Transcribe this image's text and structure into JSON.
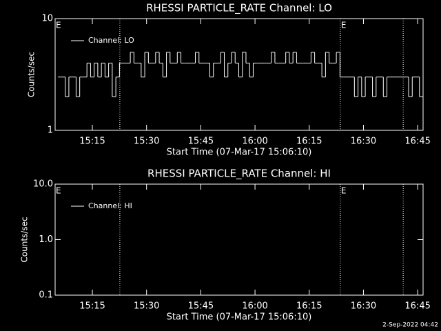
{
  "chart_data": [
    {
      "type": "step",
      "title": "RHESSI PARTICLE_RATE Channel: LO",
      "xlabel": "Start Time (07-Mar-17 15:06:10)",
      "ylabel": "Counts/sec",
      "log_y": true,
      "legend": "top-left",
      "xlim": [
        4.7,
        106.5
      ],
      "xticks": [
        {
          "value": 15,
          "label": "15:15"
        },
        {
          "value": 30,
          "label": "15:30"
        },
        {
          "value": 45,
          "label": "15:45"
        },
        {
          "value": 60,
          "label": "16:00"
        },
        {
          "value": 75,
          "label": "16:15"
        },
        {
          "value": 90,
          "label": "16:30"
        },
        {
          "value": 105,
          "label": "16:45"
        }
      ],
      "ylim": [
        1,
        10
      ],
      "yticks": [
        1,
        10
      ],
      "vlines": [
        22.6,
        83.6,
        101.0
      ],
      "flags": [
        {
          "label": "E",
          "x": 4.7
        },
        {
          "label": "E",
          "x": 83.6
        }
      ],
      "x": [
        6,
        7,
        8,
        9,
        10,
        11,
        12,
        13,
        14,
        15,
        16,
        17,
        18,
        19,
        20,
        21,
        22,
        23,
        24,
        25,
        26,
        27,
        28,
        29,
        30,
        31,
        32,
        33,
        34,
        35,
        36,
        37,
        38,
        39,
        40,
        41,
        42,
        43,
        44,
        45,
        46,
        47,
        48,
        49,
        50,
        51,
        52,
        53,
        54,
        55,
        56,
        57,
        58,
        59,
        60,
        61,
        62,
        63,
        64,
        65,
        66,
        67,
        68,
        69,
        70,
        71,
        72,
        73,
        74,
        75,
        76,
        77,
        78,
        79,
        80,
        81,
        82,
        83,
        84,
        85,
        86,
        87,
        88,
        89,
        90,
        91,
        92,
        93,
        94,
        95,
        96,
        97,
        98,
        99,
        100,
        101,
        102,
        103,
        104,
        105,
        106
      ],
      "series": [
        {
          "name": "Channel: LO",
          "color": "#ffffff",
          "values": [
            3,
            3,
            2,
            3,
            3,
            2,
            3,
            3,
            4,
            3,
            4,
            3,
            4,
            3,
            4,
            2,
            3,
            4,
            4,
            4,
            5,
            4,
            4,
            3,
            5,
            4,
            4,
            5,
            4,
            3,
            5,
            4,
            4,
            5,
            4,
            4,
            4,
            4,
            5,
            4,
            4,
            4,
            3,
            4,
            4,
            5,
            3,
            4,
            5,
            4,
            3,
            5,
            4,
            3,
            4,
            4,
            4,
            4,
            4,
            5,
            4,
            4,
            4,
            5,
            4,
            5,
            4,
            4,
            4,
            4,
            5,
            4,
            4,
            3,
            5,
            4,
            4,
            5,
            3,
            3,
            3,
            3,
            2,
            3,
            2,
            3,
            3,
            2,
            3,
            3,
            2,
            3,
            3,
            3,
            3,
            3,
            3,
            2,
            3,
            3,
            2
          ]
        }
      ]
    },
    {
      "type": "step",
      "title": "RHESSI PARTICLE_RATE Channel: HI",
      "xlabel": "Start Time (07-Mar-17 15:06:10)",
      "ylabel": "Counts/sec",
      "log_y": true,
      "legend": "top-left",
      "xlim": [
        4.7,
        106.5
      ],
      "xticks": [
        {
          "value": 15,
          "label": "15:15"
        },
        {
          "value": 30,
          "label": "15:30"
        },
        {
          "value": 45,
          "label": "15:45"
        },
        {
          "value": 60,
          "label": "16:00"
        },
        {
          "value": 75,
          "label": "16:15"
        },
        {
          "value": 90,
          "label": "16:30"
        },
        {
          "value": 105,
          "label": "16:45"
        }
      ],
      "ylim": [
        0.1,
        10
      ],
      "yticks": [
        0.1,
        {
          "value": 1,
          "label": "1.0"
        },
        {
          "value": 10,
          "label": "10.0"
        }
      ],
      "vlines": [
        22.6,
        83.6,
        101.0
      ],
      "flags": [
        {
          "label": "E",
          "x": 4.7
        },
        {
          "label": "E",
          "x": 83.6
        }
      ],
      "x": [],
      "series": [
        {
          "name": "Channel: HI",
          "color": "#ffffff",
          "values": []
        }
      ]
    }
  ],
  "footer": "2-Sep-2022 04:42"
}
